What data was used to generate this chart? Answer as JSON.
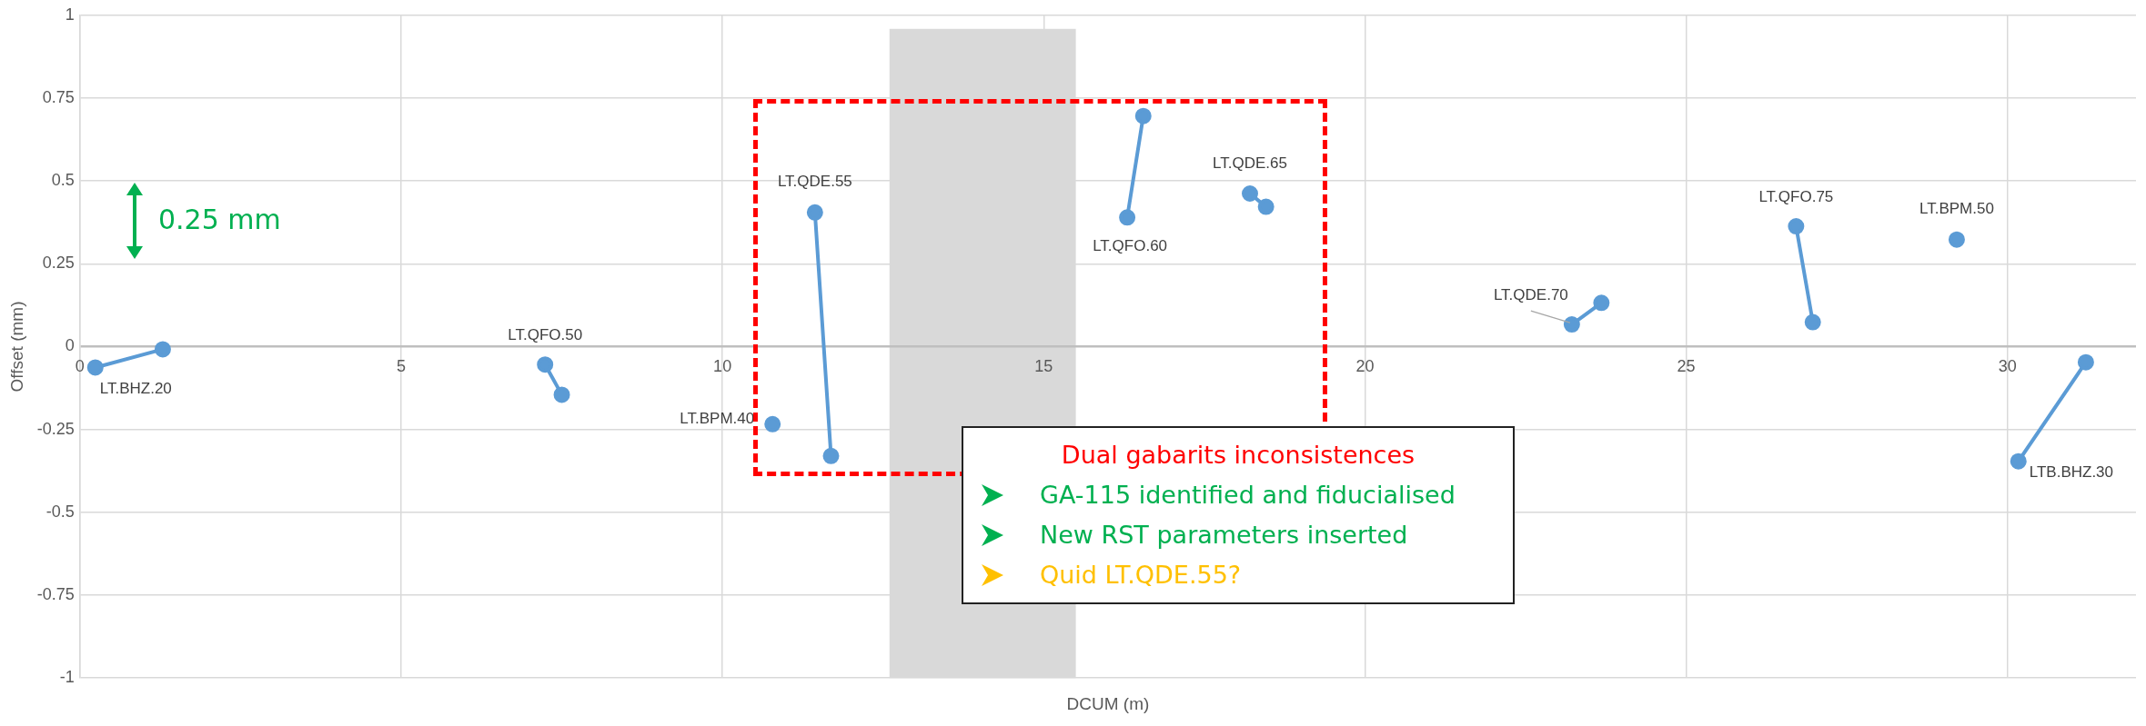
{
  "chart_data": {
    "type": "line",
    "xlabel": "DCUM (m)",
    "ylabel": "Offset (mm)",
    "xlim": [
      0,
      32
    ],
    "xticks": [
      0,
      5,
      10,
      15,
      20,
      25,
      30
    ],
    "ylim": [
      -1,
      1
    ],
    "yticks": [
      -1,
      -0.75,
      -0.5,
      -0.25,
      0,
      0.25,
      0.5,
      0.75,
      1
    ],
    "grid": true,
    "legend": false,
    "marker": "circle",
    "line_style": "solid",
    "series": [
      {
        "name": "LT.BHZ.20",
        "color": "#5b9bd5",
        "x": [
          0.24,
          1.29
        ],
        "values": [
          -0.063,
          -0.008
        ]
      },
      {
        "name": "LT.QFO.50",
        "color": "#5b9bd5",
        "x": [
          7.24,
          7.5
        ],
        "values": [
          -0.054,
          -0.145
        ]
      },
      {
        "name": "LT.BPM.40",
        "color": "#5b9bd5",
        "x": [
          10.78
        ],
        "values": [
          -0.234
        ]
      },
      {
        "name": "LT.QDE.55",
        "color": "#5b9bd5",
        "x": [
          11.44,
          11.69
        ],
        "values": [
          0.405,
          -0.33
        ]
      },
      {
        "name": "LT.QFO.60",
        "color": "#5b9bd5",
        "x": [
          16.3,
          16.55
        ],
        "values": [
          0.39,
          0.696
        ]
      },
      {
        "name": "LT.QDE.65",
        "color": "#5b9bd5",
        "x": [
          18.21,
          18.46
        ],
        "values": [
          0.462,
          0.422
        ]
      },
      {
        "name": "LT.QDE.70",
        "color": "#5b9bd5",
        "x": [
          23.22,
          23.68
        ],
        "values": [
          0.067,
          0.132
        ]
      },
      {
        "name": "LT.QFO.75",
        "color": "#5b9bd5",
        "x": [
          26.71,
          26.97
        ],
        "values": [
          0.363,
          0.074
        ]
      },
      {
        "name": "LT.BPM.50",
        "color": "#5b9bd5",
        "x": [
          29.21
        ],
        "values": [
          0.323
        ]
      },
      {
        "name": "LTB.BHZ.30",
        "color": "#5b9bd5",
        "x": [
          30.17,
          31.22
        ],
        "values": [
          -0.346,
          -0.047
        ]
      }
    ],
    "bands": [
      {
        "axis": "x",
        "from": 12.6,
        "to": 15.5,
        "color": "#d9d9d9"
      }
    ],
    "annotations": [
      "0.25 mm",
      "Dual gabarits inconsistences",
      "GA-115 identified and fiducialised",
      "New RST parameters inserted",
      "Quid LT.QDE.55?"
    ]
  }
}
